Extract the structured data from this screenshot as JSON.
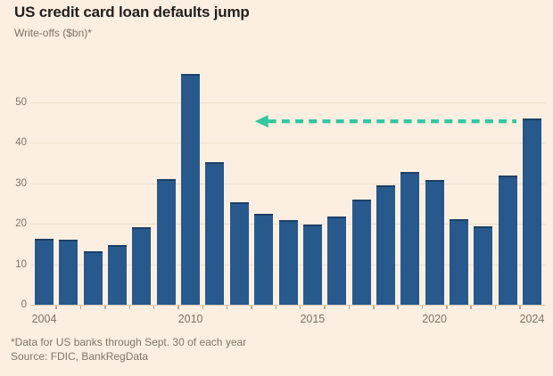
{
  "title": "US credit card loan defaults jump",
  "subtitle": "Write-offs ($bn)*",
  "footnote": "*Data for US banks through Sept. 30 of each year",
  "source": "Source: FDIC, BankRegData",
  "colors": {
    "background": "#fcefe2",
    "bar": "#28598c",
    "bar_top": "#1c4066",
    "arrow": "#34c7a0",
    "grid": "#f1decc",
    "baseline": "#ddcab7",
    "tick": "#b7a795",
    "axis_text": "#7c7165",
    "title_text": "#24201d",
    "muted_text": "#7f7469"
  },
  "chart_data": {
    "type": "bar",
    "title": "US credit card loan defaults jump",
    "ylabel": "Write-offs ($bn)",
    "x": [
      2004,
      2005,
      2006,
      2007,
      2008,
      2009,
      2010,
      2011,
      2012,
      2013,
      2014,
      2015,
      2016,
      2017,
      2018,
      2019,
      2020,
      2021,
      2022,
      2023,
      2024
    ],
    "values": [
      16.3,
      16.1,
      13.2,
      14.8,
      19.2,
      31.1,
      57.0,
      35.2,
      25.3,
      22.5,
      20.9,
      19.8,
      21.8,
      26.0,
      29.5,
      32.8,
      30.8,
      21.1,
      19.4,
      31.9,
      46.0
    ],
    "ylim": [
      0,
      60
    ],
    "yticks": [
      0,
      10,
      20,
      30,
      40,
      50
    ],
    "xticks_labeled": [
      2004,
      2010,
      2015,
      2020,
      2024
    ],
    "grid": "horizontal",
    "legend": "none",
    "annotation": {
      "type": "arrow",
      "style": "dashed",
      "direction": "left",
      "at_value": 46,
      "from_year": 2024,
      "to_year": 2013
    }
  }
}
